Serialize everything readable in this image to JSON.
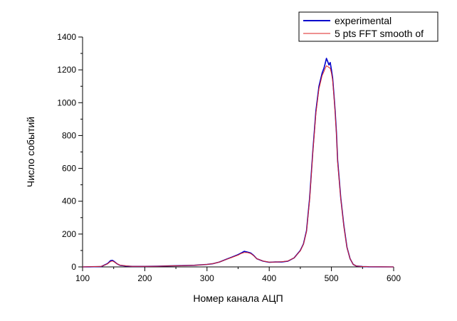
{
  "chart_data": {
    "type": "line",
    "xlabel": "Номер канала АЦП",
    "ylabel": "Число событий",
    "xlim": [
      100,
      600
    ],
    "ylim": [
      0,
      1400
    ],
    "x_ticks": [
      100,
      200,
      300,
      400,
      500,
      600
    ],
    "y_ticks": [
      0,
      200,
      400,
      600,
      800,
      1000,
      1200,
      1400
    ],
    "x_minor_step": 50,
    "y_minor_step": 100,
    "grid": false,
    "legend_position": "top-right",
    "series": [
      {
        "name": "experimental",
        "color": "#0000cc",
        "x": [
          100,
          130,
          140,
          145,
          148,
          150,
          155,
          160,
          170,
          180,
          200,
          220,
          240,
          260,
          280,
          300,
          310,
          320,
          330,
          340,
          350,
          355,
          360,
          365,
          370,
          375,
          380,
          390,
          400,
          410,
          420,
          430,
          440,
          450,
          455,
          460,
          465,
          470,
          475,
          480,
          485,
          488,
          490,
          492,
          494,
          496,
          498,
          500,
          502,
          504,
          506,
          508,
          510,
          515,
          520,
          525,
          530,
          535,
          540,
          550,
          560,
          600
        ],
        "y": [
          0,
          2,
          20,
          38,
          40,
          35,
          20,
          10,
          5,
          3,
          3,
          4,
          6,
          8,
          10,
          15,
          20,
          30,
          45,
          60,
          75,
          85,
          95,
          90,
          85,
          70,
          50,
          35,
          28,
          30,
          30,
          35,
          55,
          100,
          140,
          220,
          420,
          700,
          950,
          1100,
          1180,
          1210,
          1240,
          1270,
          1250,
          1230,
          1245,
          1200,
          1150,
          1050,
          950,
          820,
          650,
          420,
          250,
          120,
          50,
          15,
          5,
          2,
          1,
          0
        ]
      },
      {
        "name": "5 pts FFT smooth of",
        "color": "#dd2222",
        "x": [
          100,
          130,
          140,
          145,
          148,
          150,
          155,
          160,
          170,
          180,
          200,
          220,
          240,
          260,
          280,
          300,
          310,
          320,
          330,
          340,
          350,
          355,
          360,
          365,
          370,
          375,
          380,
          390,
          400,
          410,
          420,
          430,
          440,
          450,
          455,
          460,
          465,
          470,
          475,
          480,
          485,
          488,
          490,
          492,
          494,
          496,
          498,
          500,
          502,
          504,
          506,
          508,
          510,
          515,
          520,
          525,
          530,
          535,
          540,
          550,
          560,
          600
        ],
        "y": [
          0,
          3,
          18,
          33,
          36,
          32,
          20,
          11,
          6,
          3,
          3,
          4,
          6,
          8,
          10,
          15,
          20,
          30,
          44,
          58,
          72,
          82,
          88,
          87,
          82,
          68,
          50,
          36,
          29,
          30,
          31,
          36,
          55,
          98,
          138,
          215,
          410,
          690,
          935,
          1085,
          1165,
          1190,
          1210,
          1225,
          1220,
          1215,
          1210,
          1180,
          1135,
          1040,
          940,
          810,
          640,
          415,
          245,
          118,
          50,
          15,
          5,
          2,
          1,
          0
        ]
      }
    ]
  }
}
